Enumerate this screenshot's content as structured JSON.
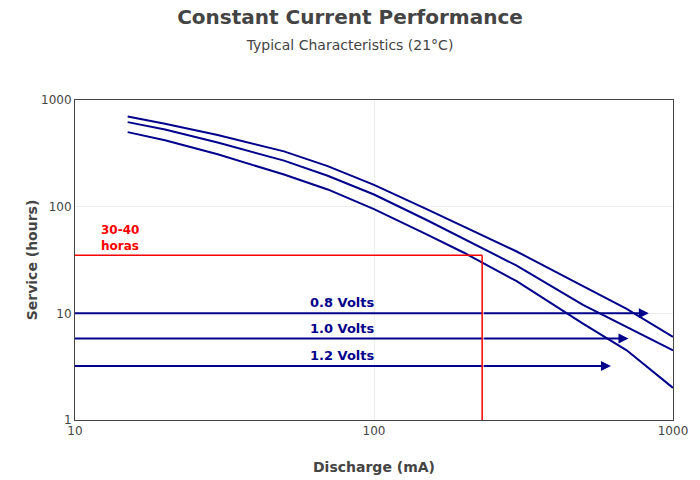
{
  "chart_data": {
    "type": "line",
    "title": "Constant Current Performance",
    "subtitle": "Typical Characteristics (21°C)",
    "xlabel": "Discharge (mA)",
    "ylabel": "Service (hours)",
    "log": true,
    "grid": true,
    "xlim": [
      10,
      1000
    ],
    "ylim": [
      1,
      1000
    ],
    "xticks": [
      10,
      100,
      1000
    ],
    "yticks": [
      1,
      10,
      100,
      1000
    ],
    "color": "#00008B",
    "x": [
      15,
      20,
      30,
      50,
      70,
      100,
      150,
      200,
      300,
      500,
      700,
      1000
    ],
    "series": [
      {
        "values": [
          700,
          600,
          470,
          330,
          240,
          160,
          95,
          65,
          38,
          18,
          11,
          6
        ]
      },
      {
        "values": [
          620,
          530,
          400,
          270,
          195,
          130,
          75,
          50,
          28,
          12,
          7.5,
          4.5
        ]
      },
      {
        "values": [
          500,
          420,
          310,
          200,
          145,
          95,
          55,
          37,
          20,
          8,
          4.5,
          2.0
        ]
      }
    ],
    "voltage_labels": [
      {
        "text": "0.8 Volts",
        "x": 60,
        "y": 10.0
      },
      {
        "text": "1.0 Volts",
        "x": 60,
        "y": 5.8
      },
      {
        "text": "1.2 Volts",
        "x": 60,
        "y": 3.2
      }
    ],
    "arrows": [
      {
        "start_x": 230,
        "start_y": 10.0,
        "end_x": 830,
        "end_y": 10.0
      },
      {
        "start_x": 230,
        "start_y": 5.8,
        "end_x": 710,
        "end_y": 5.8
      },
      {
        "start_x": 230,
        "start_y": 3.2,
        "end_x": 620,
        "end_y": 3.2
      }
    ],
    "hlines": [
      {
        "y": 10.0,
        "x1": 10,
        "x2": 230
      },
      {
        "y": 5.8,
        "x1": 10,
        "x2": 230
      },
      {
        "y": 3.2,
        "x1": 10,
        "x2": 230
      }
    ],
    "red_lines": {
      "x": 230,
      "y": 35,
      "color": "#FF0000"
    },
    "red_text": {
      "text": "30-40\nhoras",
      "x": 12,
      "y": 35,
      "color": "#FF0000"
    }
  }
}
